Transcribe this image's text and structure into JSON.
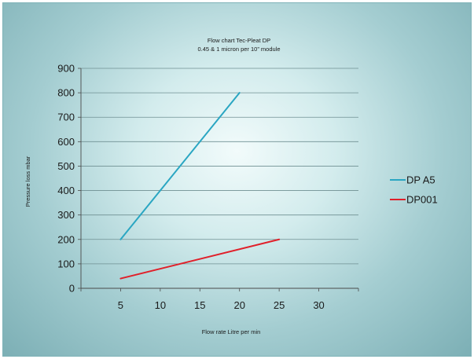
{
  "chart_data": {
    "type": "line",
    "title_lines": [
      "Flow chart Tec-Pleat DP",
      "0.45 & 1 micron per 10” module"
    ],
    "xlabel": "Flow rate Litre per min",
    "ylabel": "Pressure loss mbar",
    "xlim": [
      0,
      35
    ],
    "ylim": [
      0,
      900
    ],
    "x_ticks": [
      "5",
      "10",
      "15",
      "20",
      "25",
      "30"
    ],
    "y_ticks": [
      "0",
      "100",
      "200",
      "300",
      "400",
      "500",
      "600",
      "700",
      "800",
      "900"
    ],
    "grid": "horizontal",
    "legend_position": "right",
    "series": [
      {
        "name": "DP A5",
        "color": "#2aa6c2",
        "x": [
          5,
          20
        ],
        "y": [
          200,
          800
        ]
      },
      {
        "name": "DP001",
        "color": "#e0202a",
        "x": [
          5,
          25
        ],
        "y": [
          40,
          200
        ]
      }
    ]
  }
}
